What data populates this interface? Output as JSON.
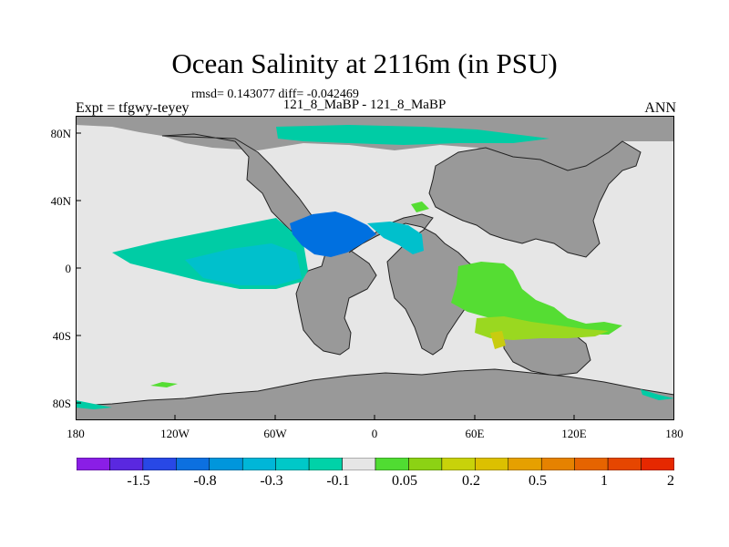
{
  "title": "Ocean Salinity at 2116m (in PSU)",
  "stats": "rmsd= 0.143077 diff= -0.042469",
  "subtitle": "121_8_MaBP - 121_8_MaBP",
  "expt": "Expt = tfgwy-teyey",
  "season": "ANN",
  "map": {
    "lat_ticks": [
      "80N",
      "40N",
      "0",
      "40S",
      "80S"
    ],
    "lon_ticks": [
      "180",
      "120W",
      "60W",
      "0",
      "60E",
      "120E",
      "180"
    ],
    "colors": {
      "land": "#999999",
      "neutral_ocean": "#e6e6e6",
      "negative_light": "#00cca5",
      "negative_mid": "#00c0cc",
      "negative_strong": "#0070e0",
      "positive_light": "#55dd33",
      "positive_mid": "#9ad820",
      "positive_strong": "#c8cc10"
    }
  },
  "colorbar": {
    "labels": [
      "-1.5",
      "-0.8",
      "-0.3",
      "-0.1",
      "0.05",
      "0.2",
      "0.5",
      "1",
      "2"
    ],
    "colors": [
      "#8a1ee6",
      "#5a28e0",
      "#2848e6",
      "#0c70e0",
      "#0096dc",
      "#00b6d8",
      "#00c8c8",
      "#00d2a8",
      "#e6e6e6",
      "#50dc32",
      "#8cd214",
      "#c8d20a",
      "#dcc000",
      "#e6a000",
      "#e68200",
      "#e66400",
      "#e64600",
      "#e62800"
    ]
  }
}
